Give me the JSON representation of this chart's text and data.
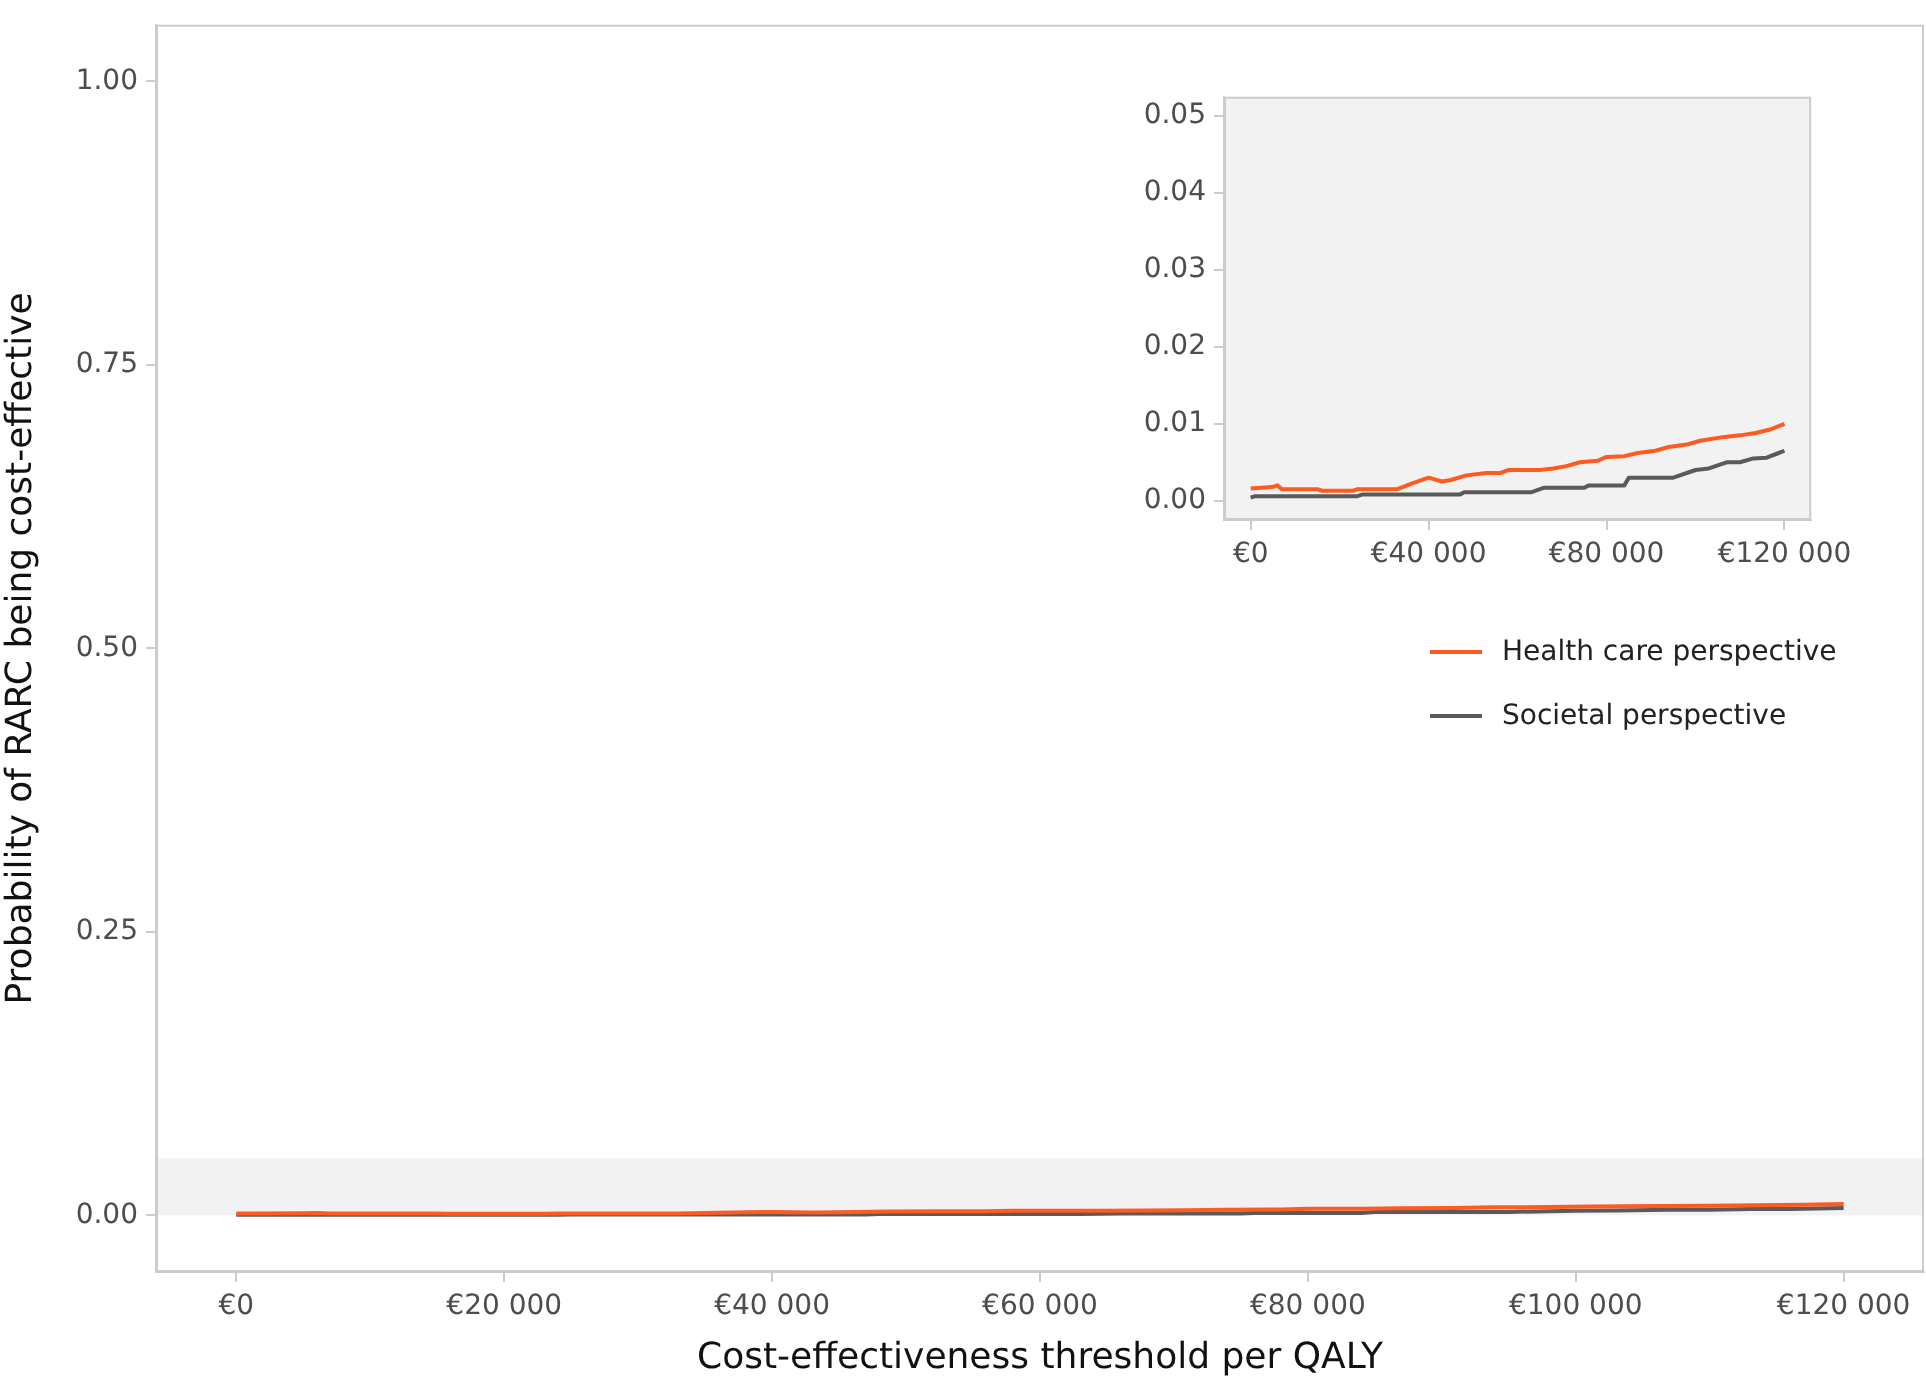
{
  "chart_data": [
    {
      "type": "line",
      "xlabel": "Cost-effectiveness threshold per QALY",
      "ylabel": "Probability of RARC being cost-effective",
      "xlim": [
        -6000,
        126000
      ],
      "xticks": [
        {
          "value": 0,
          "label": "€0"
        },
        {
          "value": 20000,
          "label": "€20 000"
        },
        {
          "value": 40000,
          "label": "€40 000"
        },
        {
          "value": 60000,
          "label": "€60 000"
        },
        {
          "value": 80000,
          "label": "€80 000"
        },
        {
          "value": 100000,
          "label": "€100 000"
        },
        {
          "value": 120000,
          "label": "€120 000"
        }
      ],
      "ylim": [
        -0.05,
        1.05
      ],
      "yticks": [
        {
          "value": 0,
          "label": "0.00"
        },
        {
          "value": 0.25,
          "label": "0.25"
        },
        {
          "value": 0.5,
          "label": "0.50"
        },
        {
          "value": 0.75,
          "label": "0.75"
        },
        {
          "value": 1,
          "label": "1.00"
        }
      ],
      "bands": [
        {
          "axis": "y",
          "from": 0,
          "to": 0.05,
          "color": "#f2f2f2"
        }
      ],
      "legend": "right",
      "grid": false,
      "marker": "none",
      "line_style": "solid",
      "series": [
        {
          "name": "Health care perspective",
          "color": "#ff5a1f",
          "x": [
            0,
            5000,
            6000,
            7000,
            15000,
            16000,
            23000,
            24000,
            33000,
            36000,
            40000,
            43000,
            45000,
            48500,
            53000,
            56000,
            58000,
            65000,
            68000,
            71000,
            74000,
            78000,
            80000,
            84000,
            87000,
            91000,
            94000,
            98000,
            101000,
            106500,
            110000,
            113500,
            117000,
            120000
          ],
          "values": [
            0.0016,
            0.0018,
            0.002,
            0.0015,
            0.0015,
            0.0013,
            0.0013,
            0.0015,
            0.0015,
            0.0022,
            0.003,
            0.0025,
            0.0027,
            0.0033,
            0.0036,
            0.0036,
            0.004,
            0.004,
            0.0042,
            0.0045,
            0.005,
            0.0052,
            0.0057,
            0.0058,
            0.0062,
            0.0065,
            0.007,
            0.0073,
            0.0078,
            0.0083,
            0.0085,
            0.0088,
            0.0093,
            0.01
          ]
        },
        {
          "name": "Societal perspective",
          "color": "#5a5a5a",
          "x": [
            0,
            1000,
            24000,
            25000,
            47000,
            48000,
            63000,
            66000,
            75000,
            76000,
            84000,
            85000,
            95000,
            100000,
            103000,
            107000,
            110000,
            113000,
            116000,
            120000
          ],
          "values": [
            0.0004,
            0.0006,
            0.0006,
            0.0008,
            0.0008,
            0.0011,
            0.0011,
            0.0017,
            0.0017,
            0.002,
            0.002,
            0.003,
            0.003,
            0.004,
            0.0042,
            0.005,
            0.005,
            0.0055,
            0.0056,
            0.0065
          ]
        }
      ]
    },
    {
      "type": "line",
      "xlim": [
        -6000,
        126000
      ],
      "xticks": [
        {
          "value": 0,
          "label": "€0"
        },
        {
          "value": 40000,
          "label": "€40 000"
        },
        {
          "value": 80000,
          "label": "€80 000"
        },
        {
          "value": 120000,
          "label": "€120 000"
        }
      ],
      "ylim": [
        -0.0025,
        0.0525
      ],
      "yticks": [
        {
          "value": 0,
          "label": "0.00"
        },
        {
          "value": 0.01,
          "label": "0.01"
        },
        {
          "value": 0.02,
          "label": "0.02"
        },
        {
          "value": 0.03,
          "label": "0.03"
        },
        {
          "value": 0.04,
          "label": "0.04"
        },
        {
          "value": 0.05,
          "label": "0.05"
        }
      ],
      "grid": false,
      "marker": "none",
      "line_style": "solid",
      "series": [
        {
          "color": "#ff5a1f",
          "x": [
            0,
            5000,
            6000,
            7000,
            15000,
            16000,
            23000,
            24000,
            33000,
            36000,
            40000,
            43000,
            45000,
            48500,
            53000,
            56000,
            58000,
            65000,
            68000,
            71000,
            74000,
            78000,
            80000,
            84000,
            87000,
            91000,
            94000,
            98000,
            101000,
            106500,
            110000,
            113500,
            117000,
            120000
          ],
          "values": [
            0.0016,
            0.0018,
            0.002,
            0.0015,
            0.0015,
            0.0013,
            0.0013,
            0.0015,
            0.0015,
            0.0022,
            0.003,
            0.0025,
            0.0027,
            0.0033,
            0.0036,
            0.0036,
            0.004,
            0.004,
            0.0042,
            0.0045,
            0.005,
            0.0052,
            0.0057,
            0.0058,
            0.0062,
            0.0065,
            0.007,
            0.0073,
            0.0078,
            0.0083,
            0.0085,
            0.0088,
            0.0093,
            0.01
          ]
        },
        {
          "color": "#5a5a5a",
          "x": [
            0,
            1000,
            24000,
            25000,
            47000,
            48000,
            63000,
            66000,
            75000,
            76000,
            84000,
            85000,
            95000,
            100000,
            103000,
            107000,
            110000,
            113000,
            116000,
            120000
          ],
          "values": [
            0.0004,
            0.0006,
            0.0006,
            0.0008,
            0.0008,
            0.0011,
            0.0011,
            0.0017,
            0.0017,
            0.002,
            0.002,
            0.003,
            0.003,
            0.004,
            0.0042,
            0.005,
            0.005,
            0.0055,
            0.0056,
            0.0065
          ]
        }
      ]
    }
  ]
}
